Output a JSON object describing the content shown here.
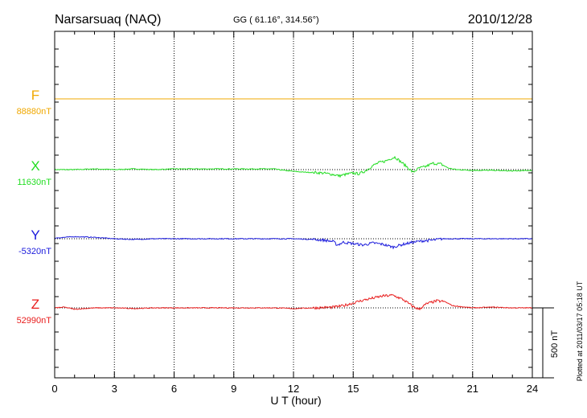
{
  "header": {
    "station": "Narsarsuaq (NAQ)",
    "coords": "GG ( 61.16°, 314.56°)",
    "date": "2010/12/28"
  },
  "footer": {
    "plotted": "Plotted at 2011/03/17 05:18 UT",
    "scale_label": "500 nT"
  },
  "chart_data": {
    "type": "line",
    "title": "Narsarsuaq (NAQ)",
    "xlabel": "U T (hour)",
    "ylabel": "",
    "xlim": [
      0,
      24
    ],
    "x_ticks": [
      0,
      3,
      6,
      9,
      12,
      15,
      18,
      21,
      24
    ],
    "grid": true,
    "scale_nT": 500,
    "series": [
      {
        "name": "F",
        "baseline_label": "88880nT",
        "color": "#f0a800",
        "x": [
          0,
          24
        ],
        "dev": [
          0,
          0
        ]
      },
      {
        "name": "X",
        "baseline_label": "11630nT",
        "color": "#22dd22",
        "x": [
          0,
          1,
          2,
          3,
          4,
          5,
          6,
          7,
          8,
          9,
          10,
          11,
          11.5,
          12,
          12.5,
          13,
          13.5,
          14,
          14.3,
          14.6,
          15,
          15.3,
          15.6,
          16,
          16.3,
          16.6,
          16.9,
          17.1,
          17.4,
          17.7,
          18,
          18.3,
          18.6,
          19,
          19.4,
          19.8,
          20.2,
          21,
          22,
          23,
          24
        ],
        "dev": [
          0,
          0,
          5,
          0,
          5,
          0,
          5,
          5,
          5,
          5,
          5,
          5,
          -5,
          -12,
          -18,
          -20,
          -25,
          -35,
          -45,
          -35,
          -25,
          -30,
          -10,
          30,
          50,
          60,
          80,
          90,
          55,
          20,
          -20,
          10,
          20,
          45,
          40,
          10,
          0,
          -5,
          -5,
          -10,
          -5
        ]
      },
      {
        "name": "Y",
        "baseline_label": "-5320nT",
        "color": "#1a1adc",
        "x": [
          0,
          1,
          2,
          3,
          4,
          5,
          6,
          7,
          8,
          9,
          10,
          11,
          12,
          13,
          13.5,
          14,
          14.2,
          14.5,
          15,
          15.5,
          16,
          16.5,
          17,
          17.5,
          18,
          18.5,
          19,
          19.5,
          20,
          21,
          22,
          23,
          24
        ],
        "dev": [
          5,
          15,
          10,
          0,
          -5,
          0,
          0,
          0,
          0,
          0,
          0,
          0,
          0,
          -5,
          -10,
          -20,
          -45,
          -25,
          -35,
          -45,
          -30,
          -40,
          -60,
          -40,
          -25,
          -15,
          -10,
          0,
          0,
          0,
          0,
          0,
          0
        ]
      },
      {
        "name": "Z",
        "baseline_label": "52990nT",
        "color": "#e81c1c",
        "x": [
          0,
          0.5,
          1,
          2,
          3,
          4,
          5,
          6,
          7,
          8,
          9,
          10,
          11,
          12,
          13,
          14,
          14.5,
          15,
          15.5,
          16,
          16.5,
          17,
          17.5,
          18,
          18.3,
          18.7,
          19.2,
          19.6,
          20,
          21,
          22,
          23,
          24
        ],
        "dev": [
          0,
          5,
          -10,
          0,
          0,
          -5,
          0,
          0,
          0,
          0,
          0,
          0,
          0,
          -5,
          0,
          5,
          15,
          35,
          55,
          70,
          85,
          90,
          60,
          10,
          -10,
          30,
          50,
          45,
          15,
          0,
          5,
          0,
          0
        ]
      }
    ]
  }
}
